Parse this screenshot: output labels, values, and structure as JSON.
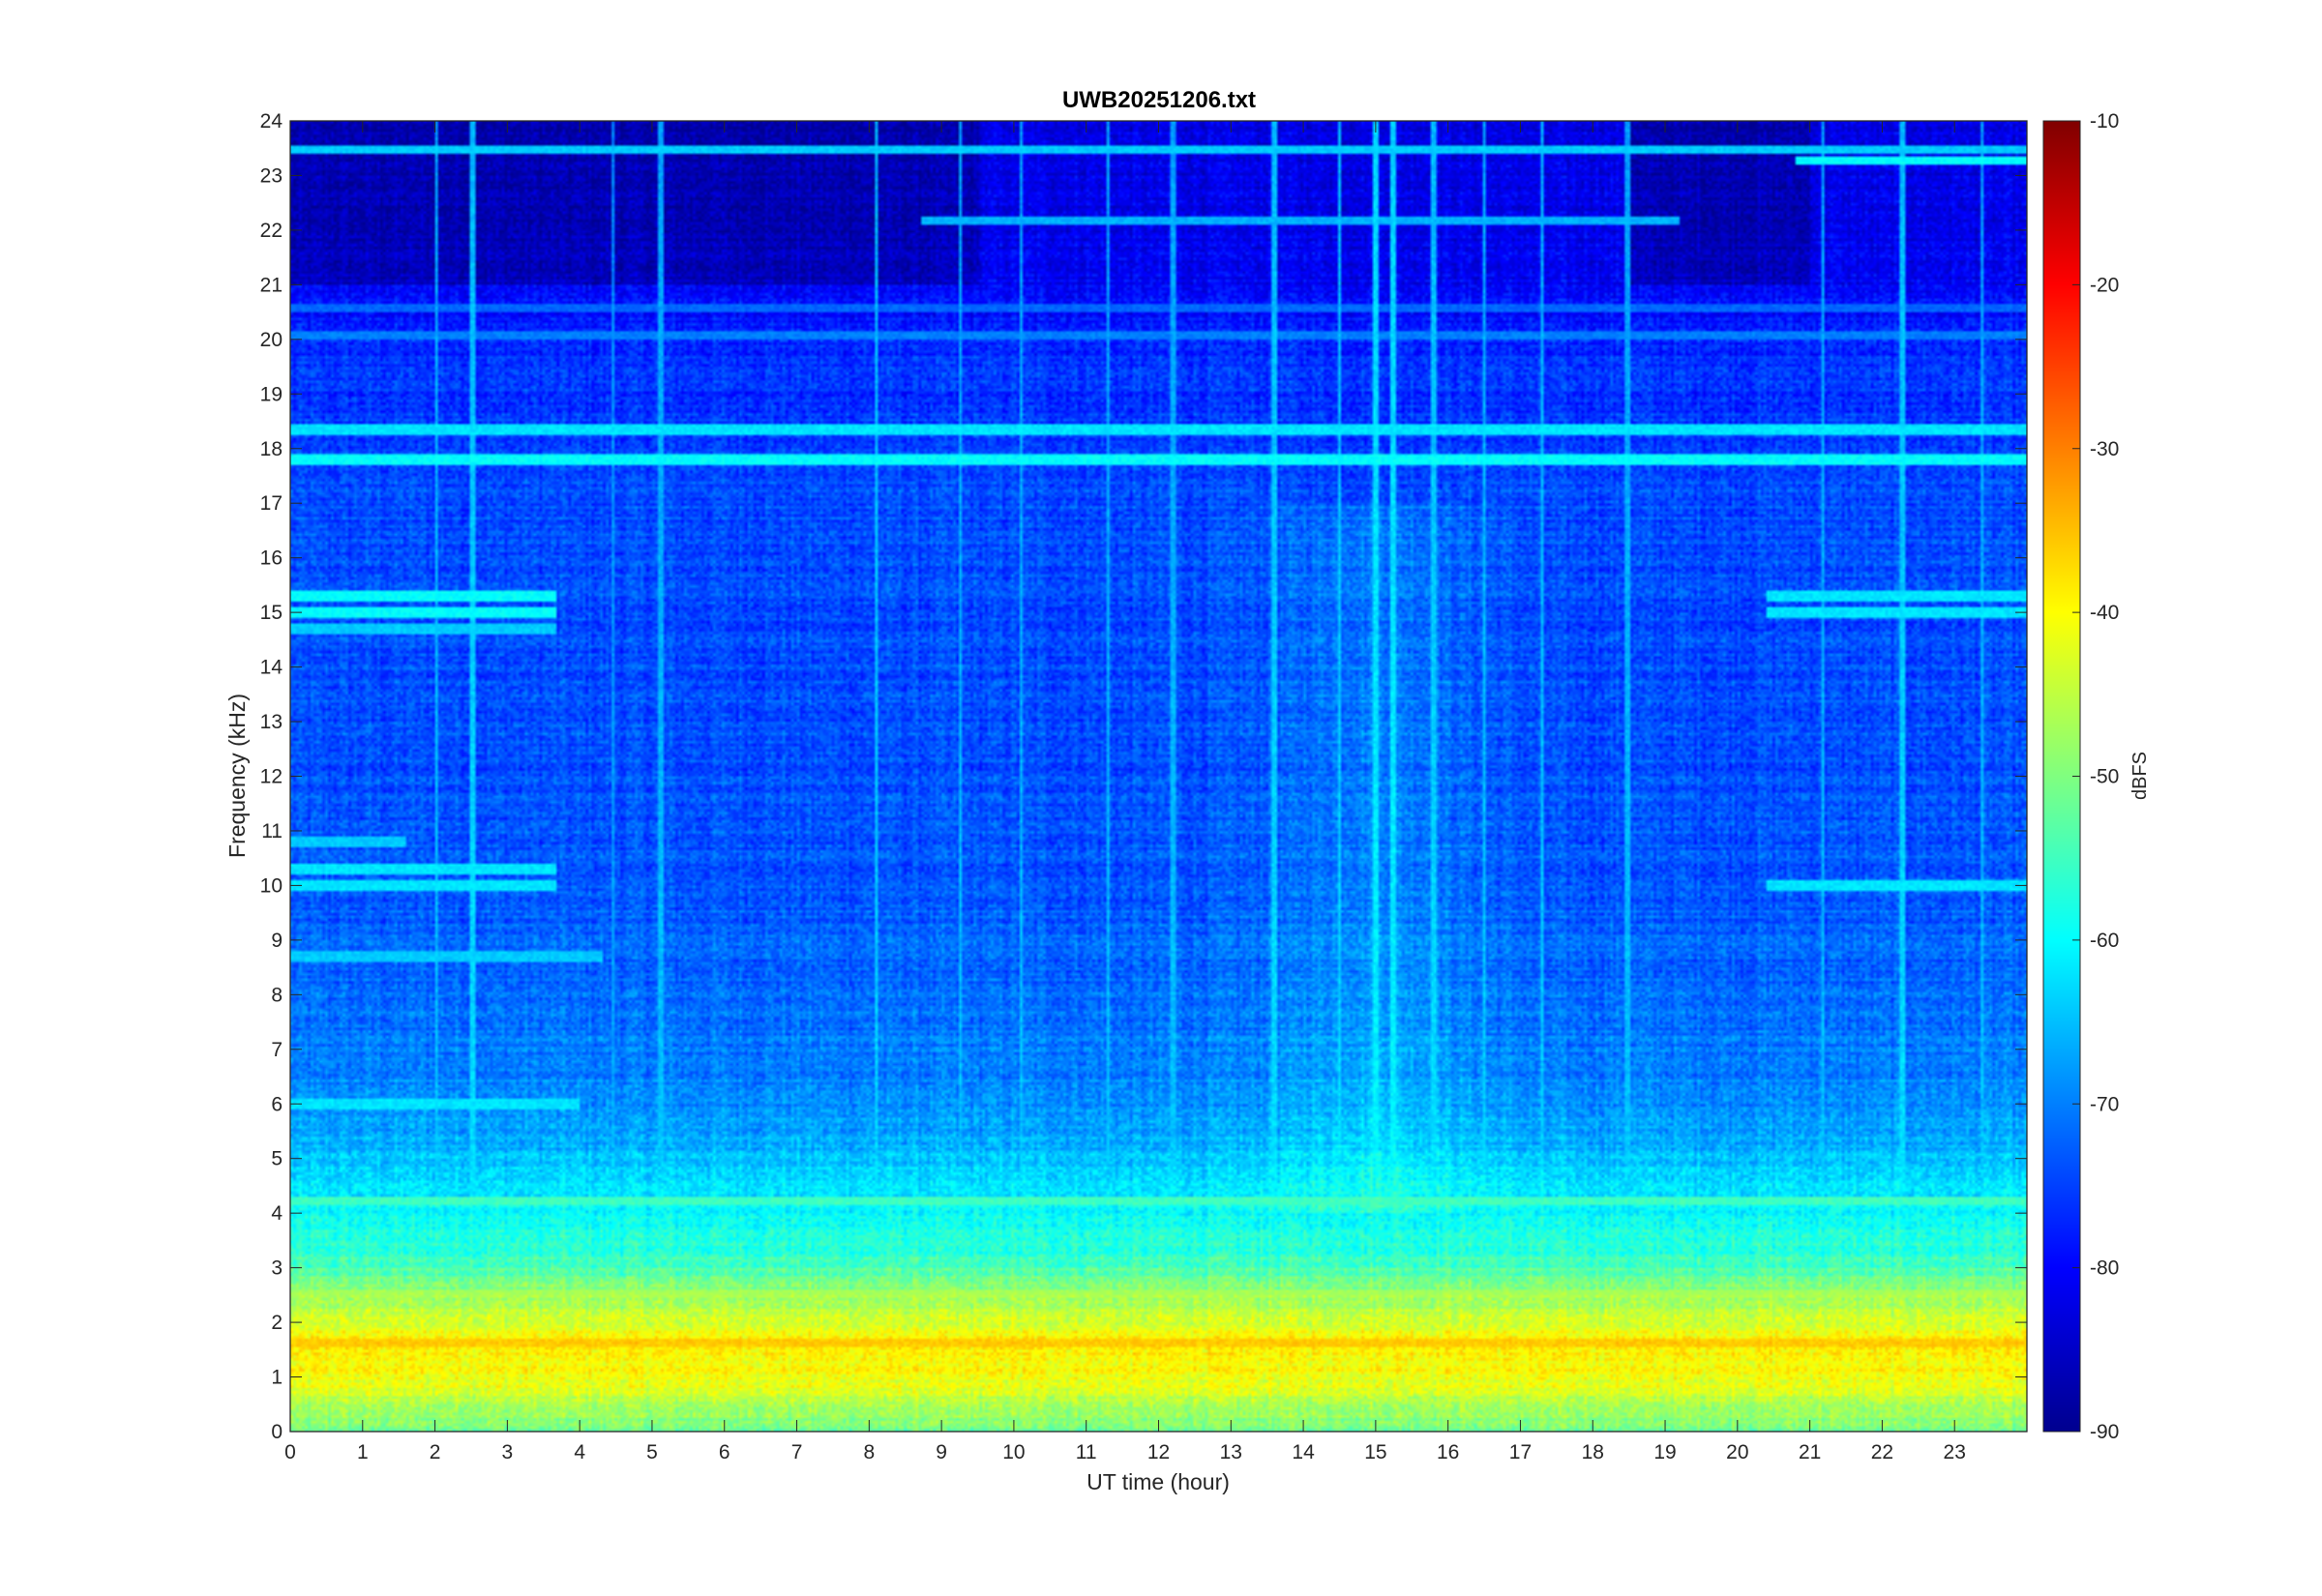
{
  "chart_data": {
    "type": "heatmap",
    "title": "UWB20251206.txt",
    "xlabel": "UT time (hour)",
    "ylabel": "Frequency (kHz)",
    "xlim": [
      0,
      24
    ],
    "ylim": [
      0,
      24
    ],
    "xticks": [
      "0",
      "1",
      "2",
      "3",
      "4",
      "5",
      "6",
      "7",
      "8",
      "9",
      "10",
      "11",
      "12",
      "13",
      "14",
      "15",
      "16",
      "17",
      "18",
      "19",
      "20",
      "21",
      "22",
      "23"
    ],
    "yticks": [
      "0",
      "1",
      "2",
      "3",
      "4",
      "5",
      "6",
      "7",
      "8",
      "9",
      "10",
      "11",
      "12",
      "13",
      "14",
      "15",
      "16",
      "17",
      "18",
      "19",
      "20",
      "21",
      "22",
      "23",
      "24"
    ],
    "colorbar": {
      "label": "dBFS",
      "range": [
        -90,
        -10
      ],
      "ticks": [
        "-10",
        "-20",
        "-30",
        "-40",
        "-50",
        "-60",
        "-70",
        "-80",
        "-90"
      ],
      "colormap": "jet"
    },
    "background_level_dbfs": -75,
    "frequency_profile": [
      {
        "f": 0.0,
        "db": -52
      },
      {
        "f": 0.3,
        "db": -48
      },
      {
        "f": 0.8,
        "db": -42
      },
      {
        "f": 1.5,
        "db": -38
      },
      {
        "f": 2.0,
        "db": -43
      },
      {
        "f": 2.6,
        "db": -50
      },
      {
        "f": 3.2,
        "db": -56
      },
      {
        "f": 4.0,
        "db": -60
      },
      {
        "f": 5.0,
        "db": -65
      },
      {
        "f": 6.0,
        "db": -69
      },
      {
        "f": 8.0,
        "db": -72
      },
      {
        "f": 12.0,
        "db": -74
      },
      {
        "f": 17.0,
        "db": -74
      },
      {
        "f": 20.0,
        "db": -77
      },
      {
        "f": 21.0,
        "db": -81
      },
      {
        "f": 24.0,
        "db": -83
      }
    ],
    "horizontal_lines_khz": [
      {
        "f": 18.35,
        "db": -62,
        "t0": 0,
        "t1": 24
      },
      {
        "f": 17.8,
        "db": -60,
        "t0": 0,
        "t1": 24
      },
      {
        "f": 23.5,
        "db": -64,
        "t0": 0,
        "t1": 24
      },
      {
        "f": 22.2,
        "db": -66,
        "t0": 8.7,
        "t1": 19.2
      },
      {
        "f": 20.1,
        "db": -70,
        "t0": 0,
        "t1": 24
      },
      {
        "f": 20.6,
        "db": -72,
        "t0": 0,
        "t1": 24
      },
      {
        "f": 15.3,
        "db": -60,
        "t0": 0,
        "t1": 3.65
      },
      {
        "f": 15.0,
        "db": -60,
        "t0": 0,
        "t1": 3.65
      },
      {
        "f": 14.7,
        "db": -64,
        "t0": 0,
        "t1": 3.65
      },
      {
        "f": 10.3,
        "db": -62,
        "t0": 0,
        "t1": 3.65
      },
      {
        "f": 10.0,
        "db": -62,
        "t0": 0,
        "t1": 3.65
      },
      {
        "f": 10.8,
        "db": -64,
        "t0": 0,
        "t1": 1.6
      },
      {
        "f": 15.3,
        "db": -62,
        "t0": 20.4,
        "t1": 24
      },
      {
        "f": 15.0,
        "db": -62,
        "t0": 20.4,
        "t1": 24
      },
      {
        "f": 10.0,
        "db": -62,
        "t0": 20.4,
        "t1": 24
      },
      {
        "f": 23.3,
        "db": -60,
        "t0": 20.8,
        "t1": 24
      },
      {
        "f": 4.2,
        "db": -55,
        "t0": 0,
        "t1": 24
      },
      {
        "f": 2.5,
        "db": -47,
        "t0": 0,
        "t1": 24
      },
      {
        "f": 1.6,
        "db": -36,
        "t0": 0,
        "t1": 24
      },
      {
        "f": 6.0,
        "db": -62,
        "t0": 0,
        "t1": 4.0
      },
      {
        "f": 8.7,
        "db": -64,
        "t0": 0,
        "t1": 4.3
      }
    ],
    "vertical_lines_hours": [
      {
        "t": 2.0,
        "db": -64
      },
      {
        "t": 2.5,
        "db": -62
      },
      {
        "t": 4.45,
        "db": -66
      },
      {
        "t": 5.1,
        "db": -64
      },
      {
        "t": 8.1,
        "db": -62
      },
      {
        "t": 9.25,
        "db": -64
      },
      {
        "t": 10.1,
        "db": -64
      },
      {
        "t": 11.3,
        "db": -64
      },
      {
        "t": 12.2,
        "db": -64
      },
      {
        "t": 13.6,
        "db": -62
      },
      {
        "t": 14.5,
        "db": -62
      },
      {
        "t": 15.0,
        "db": -60
      },
      {
        "t": 15.25,
        "db": -60
      },
      {
        "t": 15.8,
        "db": -62
      },
      {
        "t": 16.5,
        "db": -63
      },
      {
        "t": 17.3,
        "db": -63
      },
      {
        "t": 18.5,
        "db": -64
      },
      {
        "t": 21.2,
        "db": -64
      },
      {
        "t": 22.3,
        "db": -62
      },
      {
        "t": 23.4,
        "db": -64
      }
    ]
  }
}
